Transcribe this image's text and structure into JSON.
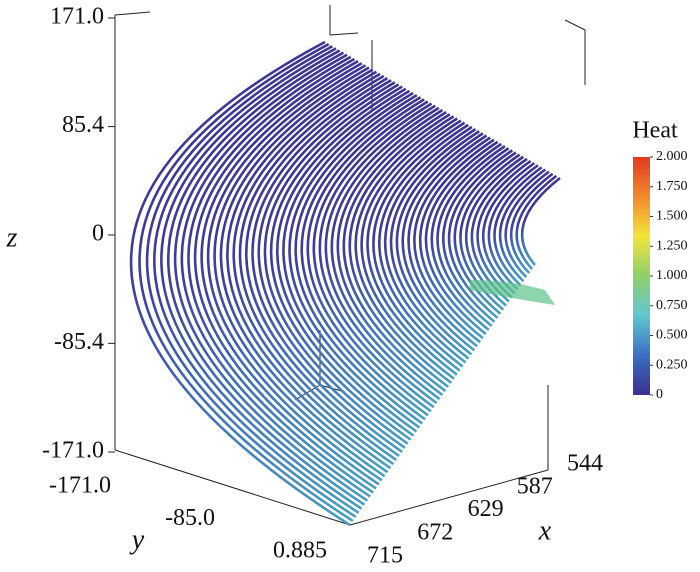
{
  "chart_data": {
    "type": "surface",
    "xlabel": "x",
    "ylabel": "y",
    "zlabel": "z",
    "zlim": [
      -171,
      171
    ],
    "zticks": [
      {
        "value": 171,
        "label": "171.0"
      },
      {
        "value": 85.4,
        "label": "85.4"
      },
      0,
      {
        "value": -85.4,
        "label": "-85.4"
      },
      {
        "value": -171,
        "label": "-171.0"
      }
    ],
    "ylim": [
      -171,
      0.885
    ],
    "yticks": [
      {
        "value": -171,
        "label": "-171.0"
      },
      {
        "value": -85,
        "label": "-85.0"
      },
      0.885
    ],
    "xlim": [
      715,
      544
    ],
    "xticks": [
      715,
      672,
      629,
      587,
      544
    ],
    "colorbar": {
      "title": "Heat",
      "lim": [
        0,
        2
      ],
      "ticks": [
        {
          "value": 2,
          "label": "2.000"
        },
        {
          "value": 1.75,
          "label": "1.750"
        },
        {
          "value": 1.5,
          "label": "1.500"
        },
        {
          "value": 1.25,
          "label": "1.250"
        },
        {
          "value": 1,
          "label": "1.000"
        },
        {
          "value": 0.75,
          "label": "0.750"
        },
        {
          "value": 0.5,
          "label": "0.500"
        },
        {
          "value": 0.25,
          "label": "0.250"
        },
        0
      ],
      "colors": [
        "#3b2f8f",
        "#3a6fc2",
        "#5fc7d0",
        "#8ed06b",
        "#f3e43a",
        "#f08a2b",
        "#e03a22"
      ]
    }
  }
}
